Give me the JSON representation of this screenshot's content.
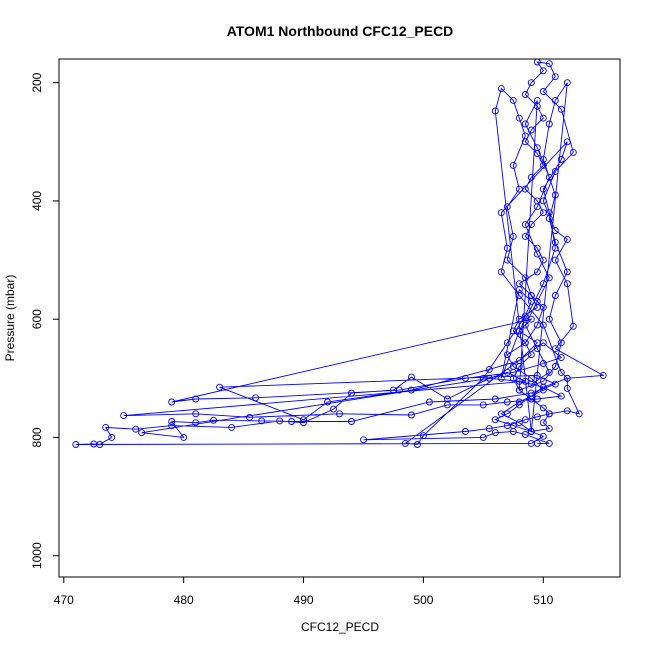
{
  "chart_data": {
    "type": "scatter",
    "title": "ATOM1 Northbound CFC12_PECD",
    "xlabel": "CFC12_PECD",
    "ylabel": "Pressure (mbar)",
    "xlim": [
      469.6,
      516.4
    ],
    "ylim": [
      1036,
      160
    ],
    "y_inverted": true,
    "x_ticks": [
      470,
      480,
      490,
      500,
      510
    ],
    "x_tick_labels": [
      "470",
      "480",
      "490",
      "500",
      "510"
    ],
    "y_ticks": [
      200,
      400,
      600,
      800,
      1000
    ],
    "y_tick_labels": [
      "200",
      "400",
      "600",
      "800",
      "1000"
    ],
    "grid": false,
    "legend": "none",
    "series": [
      {
        "color": "#0000ff",
        "marker": "open-circle",
        "connected": true,
        "points": [
          [
            509.5,
            810
          ],
          [
            510.5,
            810
          ],
          [
            508.5,
            795
          ],
          [
            507.5,
            790
          ],
          [
            506.0,
            792
          ],
          [
            505.0,
            800
          ],
          [
            495.0,
            804
          ],
          [
            503.5,
            790
          ],
          [
            505.5,
            785
          ],
          [
            507.0,
            780
          ],
          [
            508.5,
            770
          ],
          [
            509.5,
            765
          ],
          [
            510.5,
            760
          ],
          [
            510.0,
            750
          ],
          [
            509.0,
            735
          ],
          [
            508.0,
            720
          ],
          [
            507.5,
            700
          ],
          [
            508.0,
            680
          ],
          [
            509.0,
            660
          ],
          [
            508.5,
            640
          ],
          [
            507.5,
            620
          ],
          [
            508.0,
            600
          ],
          [
            509.5,
            580
          ],
          [
            509.0,
            560
          ],
          [
            508.0,
            540
          ],
          [
            509.5,
            520
          ],
          [
            510.0,
            500
          ],
          [
            509.5,
            480
          ],
          [
            508.5,
            460
          ],
          [
            509.0,
            440
          ],
          [
            510.0,
            420
          ],
          [
            509.5,
            400
          ],
          [
            508.5,
            380
          ],
          [
            509.0,
            360
          ],
          [
            510.0,
            340
          ],
          [
            509.5,
            320
          ],
          [
            508.5,
            300
          ],
          [
            509.0,
            280
          ],
          [
            510.0,
            260
          ],
          [
            509.5,
            240
          ],
          [
            508.5,
            220
          ],
          [
            509.0,
            200
          ],
          [
            510.0,
            180
          ],
          [
            509.5,
            165
          ],
          [
            510.5,
            168
          ],
          [
            511.0,
            190
          ],
          [
            510.0,
            215
          ],
          [
            511.5,
            245
          ],
          [
            512.5,
            318
          ],
          [
            511.0,
            350
          ],
          [
            510.0,
            400
          ],
          [
            511.0,
            450
          ],
          [
            512.0,
            465
          ],
          [
            511.0,
            500
          ],
          [
            512.0,
            540
          ],
          [
            512.5,
            612
          ],
          [
            511.0,
            650
          ],
          [
            515.0,
            695
          ],
          [
            512.0,
            700
          ],
          [
            510.0,
            715
          ],
          [
            509.0,
            730
          ],
          [
            508.0,
            745
          ],
          [
            507.0,
            760
          ],
          [
            506.0,
            770
          ],
          [
            507.5,
            780
          ],
          [
            509.0,
            790
          ],
          [
            510.0,
            798
          ],
          [
            509.0,
            810
          ],
          [
            471.0,
            812
          ],
          [
            472.5,
            811
          ],
          [
            473.0,
            812
          ],
          [
            474.0,
            800
          ],
          [
            473.5,
            783
          ],
          [
            476.0,
            786
          ],
          [
            479.0,
            780
          ],
          [
            484.0,
            783
          ],
          [
            488.0,
            772
          ],
          [
            490.0,
            775
          ],
          [
            492.5,
            752
          ],
          [
            494.0,
            725
          ],
          [
            497.5,
            720
          ],
          [
            499.0,
            698
          ],
          [
            502.0,
            735
          ],
          [
            505.5,
            700
          ],
          [
            507.0,
            690
          ],
          [
            508.5,
            705
          ],
          [
            475.0,
            763
          ],
          [
            481.0,
            760
          ],
          [
            485.5,
            766
          ],
          [
            493.0,
            760
          ],
          [
            499.0,
            762
          ],
          [
            502.0,
            745
          ],
          [
            505.0,
            745
          ],
          [
            507.0,
            740
          ],
          [
            509.5,
            735
          ],
          [
            511.5,
            730
          ],
          [
            510.0,
            715
          ],
          [
            508.0,
            705
          ],
          [
            505.5,
            700
          ],
          [
            476.5,
            792
          ],
          [
            480.0,
            800
          ],
          [
            479.0,
            773
          ],
          [
            481.0,
            775
          ],
          [
            482.5,
            771
          ],
          [
            486.5,
            772
          ],
          [
            489.0,
            773
          ],
          [
            494.0,
            773
          ],
          [
            500.5,
            740
          ],
          [
            506.0,
            735
          ],
          [
            509.0,
            725
          ],
          [
            511.0,
            710
          ],
          [
            509.5,
            695
          ],
          [
            483.0,
            715
          ],
          [
            490.0,
            770
          ],
          [
            492.0,
            740
          ],
          [
            499.0,
            720
          ],
          [
            505.5,
            685
          ],
          [
            508.0,
            670
          ],
          [
            509.5,
            640
          ],
          [
            508.0,
            620
          ],
          [
            509.0,
            600
          ],
          [
            479.0,
            740
          ],
          [
            481.0,
            735
          ],
          [
            486.0,
            733
          ],
          [
            498.0,
            720
          ],
          [
            503.5,
            700
          ],
          [
            507.5,
            690
          ],
          [
            510.0,
            675
          ],
          [
            511.5,
            665
          ],
          [
            510.0,
            640
          ],
          [
            498.5,
            810
          ],
          [
            499.5,
            812
          ],
          [
            500.0,
            797
          ],
          [
            505.0,
            700
          ],
          [
            507.0,
            640
          ],
          [
            508.5,
            595
          ],
          [
            509.0,
            570
          ],
          [
            508.0,
            550
          ],
          [
            506.5,
            700
          ],
          [
            508.0,
            620
          ],
          [
            510.0,
            540
          ],
          [
            511.0,
            480
          ],
          [
            510.5,
            420
          ],
          [
            510.0,
            380
          ],
          [
            511.5,
            330
          ],
          [
            512.0,
            300
          ],
          [
            506.5,
            420
          ],
          [
            507.0,
            480
          ],
          [
            506.5,
            520
          ],
          [
            508.0,
            560
          ],
          [
            510.0,
            610
          ],
          [
            511.5,
            690
          ],
          [
            512.0,
            700
          ],
          [
            512.0,
            717
          ],
          [
            513.0,
            760
          ],
          [
            512.0,
            755
          ],
          [
            510.5,
            760
          ],
          [
            510.0,
            775
          ],
          [
            510.5,
            785
          ],
          [
            509.0,
            790
          ],
          [
            506.0,
            248
          ],
          [
            506.5,
            210
          ],
          [
            507.5,
            230
          ],
          [
            508.0,
            260
          ],
          [
            508.5,
            290
          ],
          [
            507.5,
            340
          ],
          [
            508.0,
            380
          ],
          [
            507.0,
            410
          ],
          [
            507.5,
            460
          ],
          [
            507.0,
            500
          ],
          [
            508.5,
            530
          ],
          [
            509.0,
            560
          ],
          [
            510.0,
            580
          ],
          [
            509.5,
            610
          ],
          [
            508.5,
            640
          ],
          [
            507.0,
            660
          ],
          [
            507.5,
            680
          ],
          [
            509.0,
            700
          ],
          [
            510.0,
            720
          ],
          [
            508.0,
            740
          ],
          [
            506.5,
            760
          ],
          [
            508.0,
            775
          ],
          [
            509.0,
            790
          ],
          [
            512.0,
            200
          ],
          [
            511.0,
            230
          ],
          [
            510.5,
            270
          ],
          [
            510.0,
            330
          ],
          [
            511.0,
            390
          ],
          [
            510.5,
            430
          ],
          [
            511.0,
            470
          ],
          [
            512.0,
            520
          ],
          [
            511.0,
            560
          ],
          [
            510.5,
            600
          ],
          [
            511.5,
            640
          ],
          [
            511.0,
            680
          ],
          [
            510.0,
            705
          ],
          [
            508.0,
            720
          ],
          [
            509.5,
            230
          ],
          [
            508.5,
            270
          ],
          [
            509.5,
            310
          ],
          [
            510.5,
            360
          ],
          [
            509.5,
            410
          ],
          [
            508.5,
            440
          ],
          [
            509.5,
            490
          ],
          [
            510.5,
            530
          ],
          [
            509.5,
            570
          ],
          [
            508.5,
            610
          ],
          [
            509.5,
            650
          ],
          [
            510.5,
            690
          ],
          [
            509.0,
            710
          ]
        ]
      }
    ]
  }
}
